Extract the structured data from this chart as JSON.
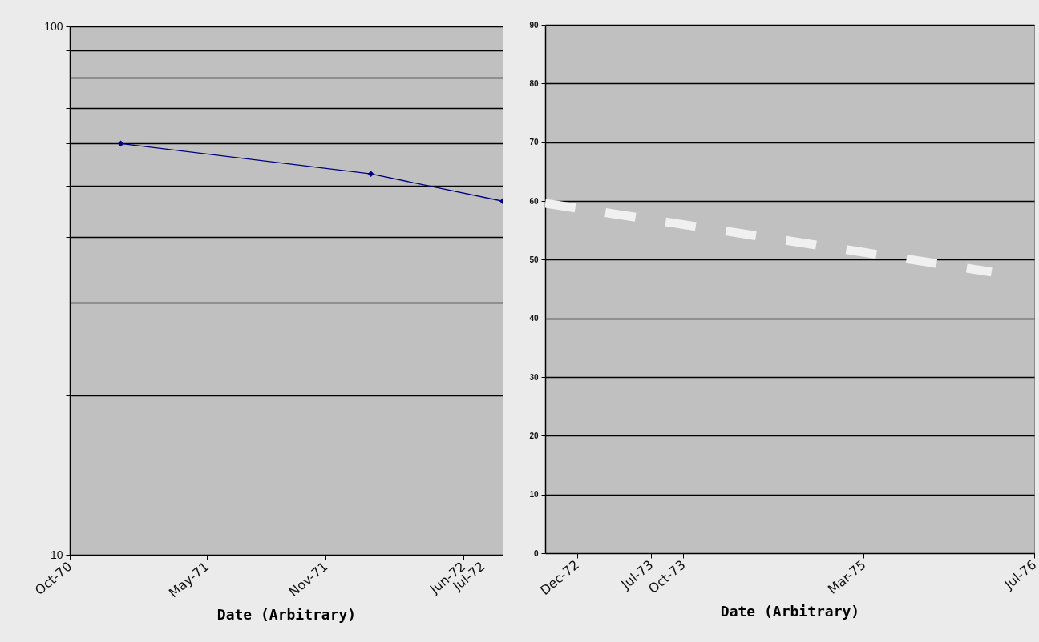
{
  "chart_data": [
    {
      "type": "line",
      "xlabel": "Date (Arbitrary)",
      "log": "y",
      "grid": "y",
      "marker": "diamond",
      "line_style": "solid",
      "xlim": [
        "1970-10-01",
        "1972-08-01"
      ],
      "xticks": [
        {
          "value": "1970-10-01",
          "label": "Oct-70"
        },
        {
          "value": "1971-05-01",
          "label": "May-71"
        },
        {
          "value": "1971-11-01",
          "label": "Nov-71"
        },
        {
          "value": "1972-06-01",
          "label": "Jun-72"
        },
        {
          "value": "1972-07-01",
          "label": "Jul-72"
        }
      ],
      "ylim": [
        10,
        100
      ],
      "yticks": [
        10,
        {
          "value": 20,
          "label": null
        },
        {
          "value": 30,
          "label": null
        },
        {
          "value": 40,
          "label": null
        },
        {
          "value": 50,
          "label": null
        },
        {
          "value": 60,
          "label": null
        },
        {
          "value": 70,
          "label": null
        },
        {
          "value": 80,
          "label": null
        },
        {
          "value": 90,
          "label": null
        },
        100
      ],
      "series": [
        {
          "color": "#000080",
          "x": [
            "1970-12-19",
            "1972-01-10",
            "1972-08-01"
          ],
          "values": [
            60,
            52.6,
            46.7
          ]
        }
      ]
    },
    {
      "type": "line",
      "xlabel": "Date (Arbitrary)",
      "grid": "y",
      "marker": "none",
      "line_style": "dashed",
      "xlim": [
        "1972-09-01",
        "1976-07-01"
      ],
      "xticks": [
        {
          "value": "1972-12-01",
          "label": "Dec-72"
        },
        {
          "value": "1973-07-01",
          "label": "Jul-73"
        },
        {
          "value": "1973-10-01",
          "label": "Oct-73"
        },
        {
          "value": "1975-03-01",
          "label": "Mar-75"
        },
        {
          "value": "1976-07-01",
          "label": "Jul-76"
        }
      ],
      "ylim": [
        0,
        90
      ],
      "yticks": [
        0,
        10,
        20,
        30,
        40,
        50,
        60,
        70,
        80,
        90
      ],
      "series": [
        {
          "color": "#f0f0f0",
          "x": [
            "1972-09-01",
            "1976-03-01"
          ],
          "values": [
            59.6,
            47.9
          ]
        }
      ]
    }
  ]
}
